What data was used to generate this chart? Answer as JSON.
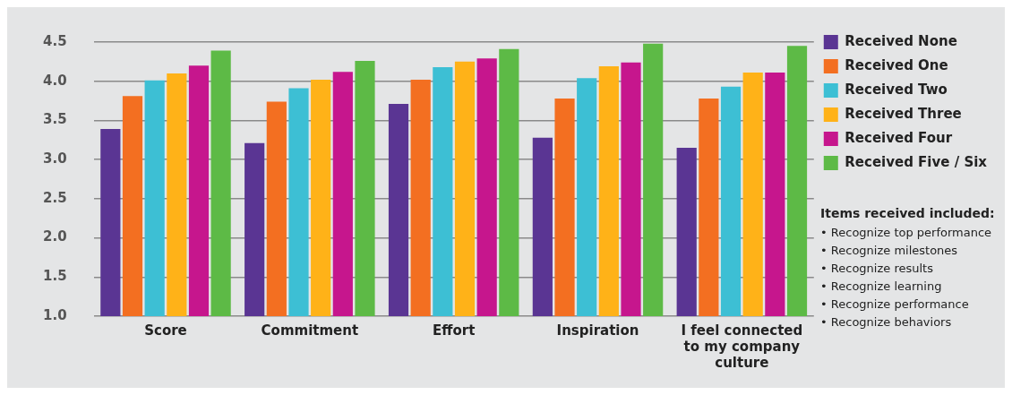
{
  "chart_data": {
    "type": "bar",
    "categories": [
      "Score",
      "Commitment",
      "Effort",
      "Inspiration",
      "I feel connected to my company culture"
    ],
    "series": [
      {
        "name": "Received None",
        "color": "#5a3593",
        "values": [
          3.39,
          3.21,
          3.71,
          3.28,
          3.15
        ]
      },
      {
        "name": "Received One",
        "color": "#f36f21",
        "values": [
          3.81,
          3.74,
          4.02,
          3.78,
          3.78
        ]
      },
      {
        "name": "Received Two",
        "color": "#3dbfd4",
        "values": [
          4.01,
          3.91,
          4.18,
          4.04,
          3.93
        ]
      },
      {
        "name": "Received Three",
        "color": "#ffb218",
        "values": [
          4.1,
          4.02,
          4.25,
          4.19,
          4.11
        ]
      },
      {
        "name": "Received Four",
        "color": "#c6168d",
        "values": [
          4.2,
          4.12,
          4.29,
          4.24,
          4.11
        ]
      },
      {
        "name": "Received Five / Six",
        "color": "#5dba46",
        "values": [
          4.39,
          4.26,
          4.41,
          4.48,
          4.45
        ]
      }
    ],
    "ylim": [
      1,
      4.5
    ],
    "yticks": [
      {
        "value": 1,
        "label": "1.0"
      },
      {
        "value": 1.5,
        "label": "1.5"
      },
      {
        "value": 2,
        "label": "2.0"
      },
      {
        "value": 2.5,
        "label": "2.5"
      },
      {
        "value": 3,
        "label": "3.0"
      },
      {
        "value": 3.5,
        "label": "3.5"
      },
      {
        "value": 4,
        "label": "4.0"
      },
      {
        "value": 4.5,
        "label": "4.5"
      }
    ],
    "grid": "y",
    "legend": "right",
    "annotations": [
      "Items received included:",
      "• Recognize top performance",
      "• Recognize milestones",
      "• Recognize results",
      "• Recognize learning",
      "• Recognize performance",
      "• Recognize behaviors"
    ]
  }
}
